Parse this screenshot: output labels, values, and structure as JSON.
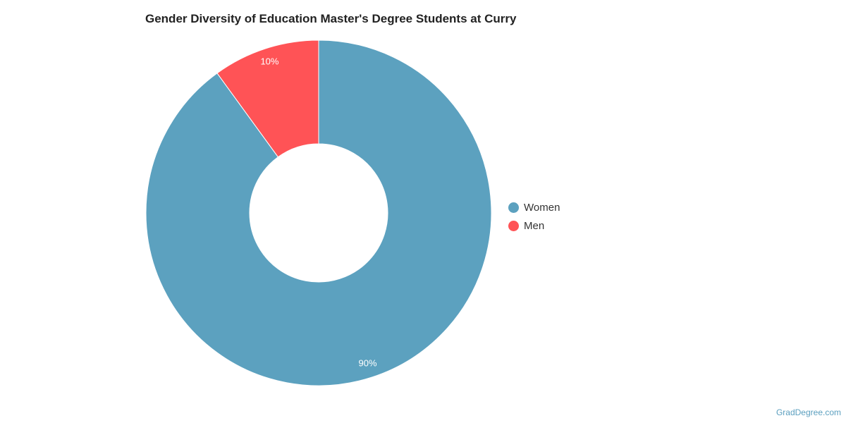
{
  "chart_data": {
    "type": "pie",
    "donut": true,
    "title": "Gender Diversity of Education Master's Degree Students at Curry",
    "categories": [
      "Women",
      "Men"
    ],
    "values": [
      90,
      10
    ],
    "unit": "%",
    "data_labels": [
      "90%",
      "10%"
    ],
    "colors": [
      "#5ca1bf",
      "#ff5356"
    ],
    "legend_position": "right"
  },
  "credit": "GradDegree.com"
}
